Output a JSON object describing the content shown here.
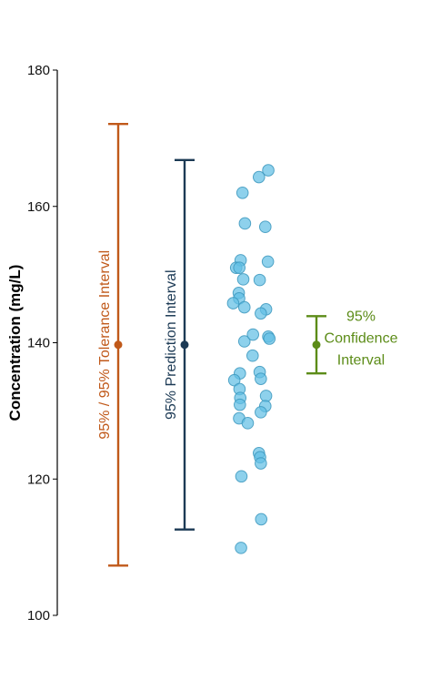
{
  "chart_data": {
    "type": "scatter",
    "ylabel": "Concentration (mg/L)",
    "xlabel": "",
    "ylim": [
      100,
      180
    ],
    "yticks": [
      100,
      120,
      140,
      160,
      180
    ],
    "grid": false,
    "points": [
      {
        "x": 0.92,
        "y": 165.3
      },
      {
        "x": 0.87,
        "y": 164.3
      },
      {
        "x": 0.782,
        "y": 162.0
      },
      {
        "x": 0.795,
        "y": 157.5
      },
      {
        "x": 0.904,
        "y": 157.0
      },
      {
        "x": 0.772,
        "y": 152.1
      },
      {
        "x": 0.918,
        "y": 151.9
      },
      {
        "x": 0.748,
        "y": 151.0
      },
      {
        "x": 0.765,
        "y": 151.0
      },
      {
        "x": 0.786,
        "y": 149.3
      },
      {
        "x": 0.874,
        "y": 149.2
      },
      {
        "x": 0.762,
        "y": 147.3
      },
      {
        "x": 0.764,
        "y": 146.5
      },
      {
        "x": 0.732,
        "y": 145.8
      },
      {
        "x": 0.792,
        "y": 145.2
      },
      {
        "x": 0.908,
        "y": 144.9
      },
      {
        "x": 0.88,
        "y": 144.3
      },
      {
        "x": 0.792,
        "y": 140.2
      },
      {
        "x": 0.838,
        "y": 141.2
      },
      {
        "x": 0.92,
        "y": 140.9
      },
      {
        "x": 0.926,
        "y": 140.6
      },
      {
        "x": 0.836,
        "y": 138.1
      },
      {
        "x": 0.768,
        "y": 135.5
      },
      {
        "x": 0.874,
        "y": 135.7
      },
      {
        "x": 0.738,
        "y": 134.5
      },
      {
        "x": 0.88,
        "y": 134.7
      },
      {
        "x": 0.766,
        "y": 133.2
      },
      {
        "x": 0.908,
        "y": 132.2
      },
      {
        "x": 0.77,
        "y": 131.9
      },
      {
        "x": 0.768,
        "y": 130.9
      },
      {
        "x": 0.904,
        "y": 130.7
      },
      {
        "x": 0.88,
        "y": 129.8
      },
      {
        "x": 0.764,
        "y": 128.9
      },
      {
        "x": 0.81,
        "y": 128.2
      },
      {
        "x": 0.87,
        "y": 123.8
      },
      {
        "x": 0.876,
        "y": 123.2
      },
      {
        "x": 0.88,
        "y": 122.3
      },
      {
        "x": 0.776,
        "y": 120.4
      },
      {
        "x": 0.882,
        "y": 114.1
      },
      {
        "x": 0.774,
        "y": 109.9
      }
    ],
    "intervals": [
      {
        "label": "95% / 95% Tolerance Interval",
        "center": 139.7,
        "lower": 107.3,
        "upper": 172.1,
        "color": "#c0591a",
        "label_orientation": "vertical"
      },
      {
        "label": "95% Prediction Interval",
        "center": 139.7,
        "lower": 112.6,
        "upper": 166.8,
        "color": "#1c3a55",
        "label_orientation": "vertical"
      },
      {
        "label_lines": [
          "95%",
          "Confidence",
          "Interval"
        ],
        "center": 139.7,
        "lower": 135.5,
        "upper": 143.9,
        "color": "#5c8c18",
        "label_orientation": "horizontal"
      }
    ],
    "point_color": "#62bfe4",
    "point_stroke": "#3b97bd"
  }
}
